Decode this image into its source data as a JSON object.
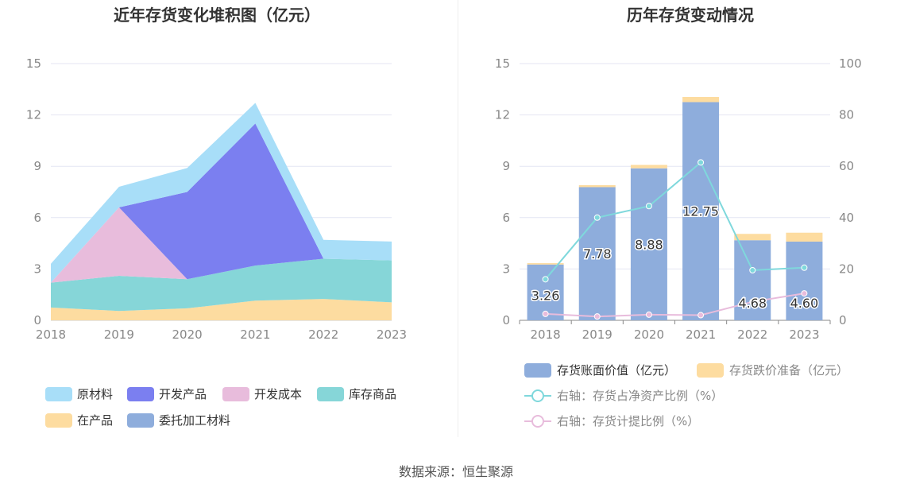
{
  "source_label": "数据来源：恒生聚源",
  "colors": {
    "raw_material": "#a8def8",
    "developed_product": "#7b7ff0",
    "development_cost": "#e8bcdc",
    "inventory_goods": "#86d6d8",
    "wip": "#fddca0",
    "consigned_material": "#8eaddc",
    "book_value_bar": "#8eaddc",
    "provision_bar": "#fddca0",
    "ratio_net_assets_line": "#7fd8dc",
    "provision_ratio_line": "#e8bcdc",
    "grid": "#e4e6f3",
    "axis_text": "#888888",
    "title_text": "#333333",
    "legend_text": "#333333",
    "legend_text_muted": "#888888"
  },
  "chart_data": [
    {
      "type": "area",
      "title": "近年存货变化堆积图（亿元）",
      "stacked": true,
      "x": [
        "2018",
        "2019",
        "2020",
        "2021",
        "2022",
        "2023"
      ],
      "ylim": [
        0,
        15
      ],
      "yticks": [
        "0",
        "3",
        "6",
        "9",
        "12",
        "15"
      ],
      "grid": true,
      "legend_position": "bottom",
      "series": [
        {
          "name": "在产品",
          "key": "wip",
          "values": [
            0.75,
            0.55,
            0.7,
            1.15,
            1.25,
            1.05
          ]
        },
        {
          "name": "库存商品",
          "key": "inventory_goods",
          "values": [
            1.45,
            2.05,
            1.7,
            2.05,
            2.35,
            2.45
          ]
        },
        {
          "name": "开发成本",
          "key": "development_cost",
          "values": [
            0,
            4.0,
            0,
            0,
            0,
            0
          ]
        },
        {
          "name": "开发产品",
          "key": "developed_product",
          "values": [
            0,
            0,
            5.1,
            8.3,
            0,
            0
          ]
        },
        {
          "name": "委托加工材料",
          "key": "consigned_material",
          "values": [
            0,
            0,
            0,
            0,
            0,
            0
          ]
        },
        {
          "name": "原材料",
          "key": "raw_material",
          "values": [
            1.1,
            1.2,
            1.4,
            1.2,
            1.1,
            1.1
          ]
        }
      ],
      "legend_order": [
        "原材料",
        "开发产品",
        "开发成本",
        "库存商品",
        "在产品",
        "委托加工材料"
      ]
    },
    {
      "type": "bar",
      "title": "历年存货变动情况",
      "x": [
        "2018",
        "2019",
        "2020",
        "2021",
        "2022",
        "2023"
      ],
      "ylim": [
        0,
        15
      ],
      "yticks": [
        "0",
        "3",
        "6",
        "9",
        "12",
        "15"
      ],
      "y2lim": [
        0,
        100
      ],
      "y2ticks": [
        "0",
        "20",
        "40",
        "60",
        "80",
        "100"
      ],
      "grid": true,
      "legend_position": "bottom",
      "bars_stacked": [
        {
          "name": "存货账面价值（亿元）",
          "key": "book_value_bar",
          "values": [
            3.26,
            7.78,
            8.88,
            12.75,
            4.68,
            4.6
          ],
          "labels": [
            "3.26",
            "7.78",
            "8.88",
            "12.75",
            "4.68",
            "4.60"
          ]
        },
        {
          "name": "存货跌价准备（亿元）",
          "key": "provision_bar",
          "values": [
            0.08,
            0.12,
            0.2,
            0.3,
            0.37,
            0.52
          ]
        }
      ],
      "lines": [
        {
          "name": "右轴：存货占净资产比例（%）",
          "key": "ratio_net_assets_line",
          "axis": "right",
          "values": [
            16,
            40,
            44.5,
            61.5,
            19.5,
            20.5
          ]
        },
        {
          "name": "右轴：存货计提比例（%）",
          "key": "provision_ratio_line",
          "axis": "right",
          "values": [
            2.5,
            1.5,
            2.2,
            2.0,
            7.2,
            10.5
          ]
        }
      ]
    }
  ]
}
